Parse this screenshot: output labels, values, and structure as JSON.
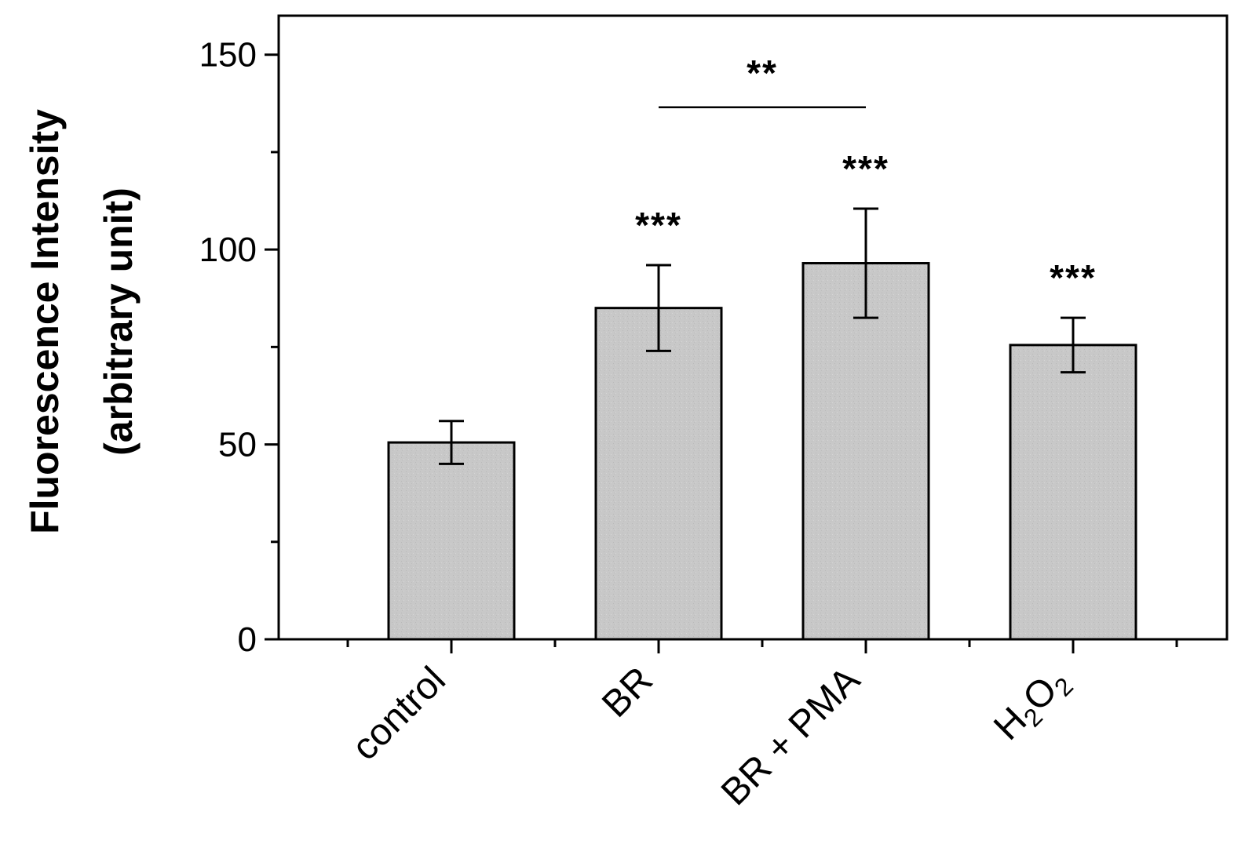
{
  "chart_data": {
    "type": "bar",
    "title": "",
    "xlabel": "",
    "ylabel_line1": "Fluorescence Intensity",
    "ylabel_line2": "(arbitrary unit)",
    "ylim": [
      0,
      160
    ],
    "yticks": [
      0,
      50,
      100,
      150
    ],
    "categories": [
      "control",
      "BR",
      "BR + PMA",
      "H2O2"
    ],
    "h2o2_label": {
      "h": "H",
      "sub1": "2",
      "o": "O",
      "sub2": "2"
    },
    "values": [
      50.5,
      85,
      96.5,
      75.5
    ],
    "errors": [
      5.5,
      11,
      14,
      7
    ],
    "significance": [
      "",
      "***",
      "***",
      "***"
    ],
    "bracket": {
      "from": 1,
      "to": 2,
      "y": 136.5,
      "label": "**"
    },
    "bar_color": "#c8c8c8",
    "edge_color": "#000000"
  }
}
